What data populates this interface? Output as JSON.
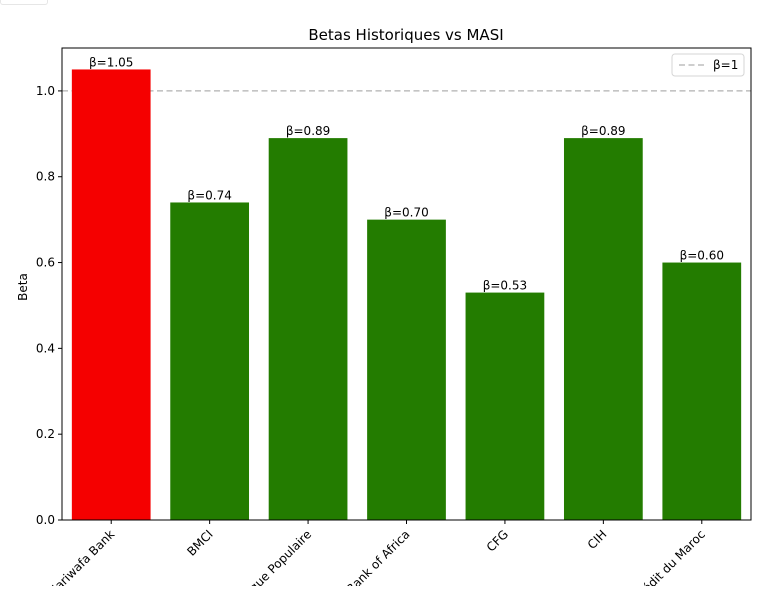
{
  "chart_data": {
    "type": "bar",
    "title": "Betas Historiques vs MASI",
    "xlabel": "",
    "ylabel": "Beta",
    "categories": [
      "Attijariwafa Bank",
      "BMCI",
      "Banque Populaire",
      "Bank of Africa",
      "CFG",
      "CIH",
      "Crédit du Maroc"
    ],
    "values": [
      1.05,
      0.74,
      0.89,
      0.7,
      0.53,
      0.89,
      0.6
    ],
    "value_labels": [
      "β=1.05",
      "β=0.74",
      "β=0.89",
      "β=0.70",
      "β=0.53",
      "β=0.89",
      "β=0.60"
    ],
    "bar_colors": [
      "#f50000",
      "#237c00",
      "#237c00",
      "#237c00",
      "#237c00",
      "#237c00",
      "#237c00"
    ],
    "ylim": [
      0,
      1.1
    ],
    "yticks": [
      0.0,
      0.2,
      0.4,
      0.6,
      0.8,
      1.0
    ],
    "ytick_labels": [
      "0.0",
      "0.2",
      "0.4",
      "0.6",
      "0.8",
      "1.0"
    ],
    "reference_line": {
      "value": 1.0,
      "style": "dashed",
      "color": "#b0b0b0"
    },
    "legend": {
      "placement": "top-right",
      "entries": [
        "β=1"
      ]
    },
    "grid": false
  }
}
